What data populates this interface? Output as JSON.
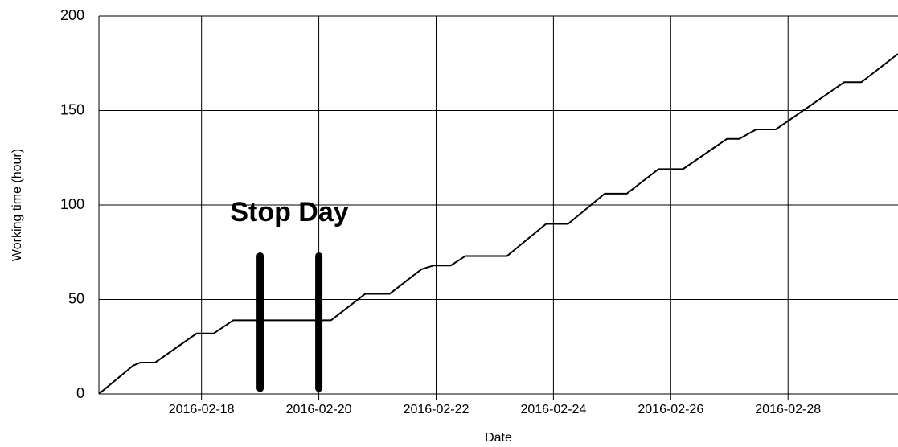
{
  "chart_data": {
    "type": "line",
    "x_label": "Date",
    "y_label": "Working time (hour)",
    "x": [
      "2016-02-16T06:00",
      "2016-02-16T20:00",
      "2016-02-16T23:00",
      "2016-02-17T05:00",
      "2016-02-17T22:00",
      "2016-02-18T05:00",
      "2016-02-18T13:00",
      "2016-02-20T05:00",
      "2016-02-20T19:00",
      "2016-02-21T05:00",
      "2016-02-21T18:00",
      "2016-02-21T23:00",
      "2016-02-22T06:00",
      "2016-02-22T12:00",
      "2016-02-23T05:00",
      "2016-02-23T21:00",
      "2016-02-24T06:00",
      "2016-02-24T21:00",
      "2016-02-25T06:00",
      "2016-02-25T19:00",
      "2016-02-26T05:00",
      "2016-02-26T23:00",
      "2016-02-27T04:00",
      "2016-02-27T11:00",
      "2016-02-27T19:00",
      "2016-02-28T23:00",
      "2016-02-29T06:00",
      "2016-02-29T21:00"
    ],
    "series": [
      {
        "color": "#000000",
        "values": [
          0,
          15,
          16.6,
          16.6,
          32,
          32,
          39,
          39,
          53,
          53,
          66,
          68,
          68,
          73,
          73,
          90,
          90,
          106,
          106,
          119,
          119,
          135,
          135,
          140,
          140,
          165,
          165,
          180
        ]
      }
    ],
    "xlim": [
      "2016-02-16T06:00",
      "2016-02-29T21:00"
    ],
    "xticks": [
      "2016-02-18",
      "2016-02-20",
      "2016-02-22",
      "2016-02-24",
      "2016-02-26",
      "2016-02-28"
    ],
    "ylim": [
      0,
      200
    ],
    "yticks": [
      0,
      50,
      100,
      150,
      200
    ],
    "grid": true,
    "annotation": "Stop Day",
    "markers": [
      {
        "x": "2016-02-19",
        "y": [
          3,
          73
        ]
      },
      {
        "x": "2016-02-20",
        "y": [
          3,
          73
        ]
      }
    ]
  }
}
